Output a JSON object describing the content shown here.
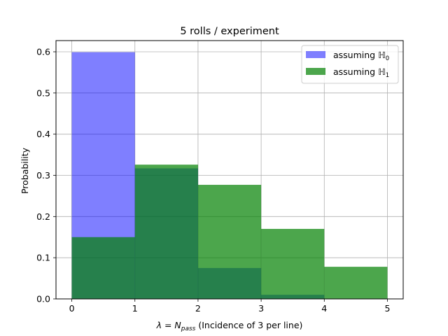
{
  "chart_data": {
    "type": "bar",
    "title": "5 rolls / experiment",
    "xlabel_math": "λ = N",
    "xlabel_sub": "pass",
    "xlabel_rest": " (Incidence of 3 per line)",
    "ylabel": "Probability",
    "xlim": [
      -0.25,
      5.25
    ],
    "ylim": [
      0,
      0.6
    ],
    "x_ticks": [
      "0",
      "1",
      "2",
      "3",
      "4",
      "5"
    ],
    "y_ticks": [
      "0.0",
      "0.1",
      "0.2",
      "0.3",
      "0.4",
      "0.5",
      "0.6"
    ],
    "grid": true,
    "legend_position": "top-right",
    "bin_edges": [
      0,
      1,
      2,
      3,
      4,
      5
    ],
    "series": [
      {
        "legend_prefix": "assuming ",
        "legend_symbol": "ℍ",
        "legend_sub": "0",
        "color": "#0000ff",
        "alpha": 0.5,
        "values": [
          0.599,
          0.317,
          0.075,
          0.01,
          0.0
        ]
      },
      {
        "legend_prefix": "assuming ",
        "legend_symbol": "ℍ",
        "legend_sub": "1",
        "color": "#008000",
        "alpha": 0.7,
        "values": [
          0.15,
          0.326,
          0.277,
          0.17,
          0.078
        ]
      }
    ]
  }
}
